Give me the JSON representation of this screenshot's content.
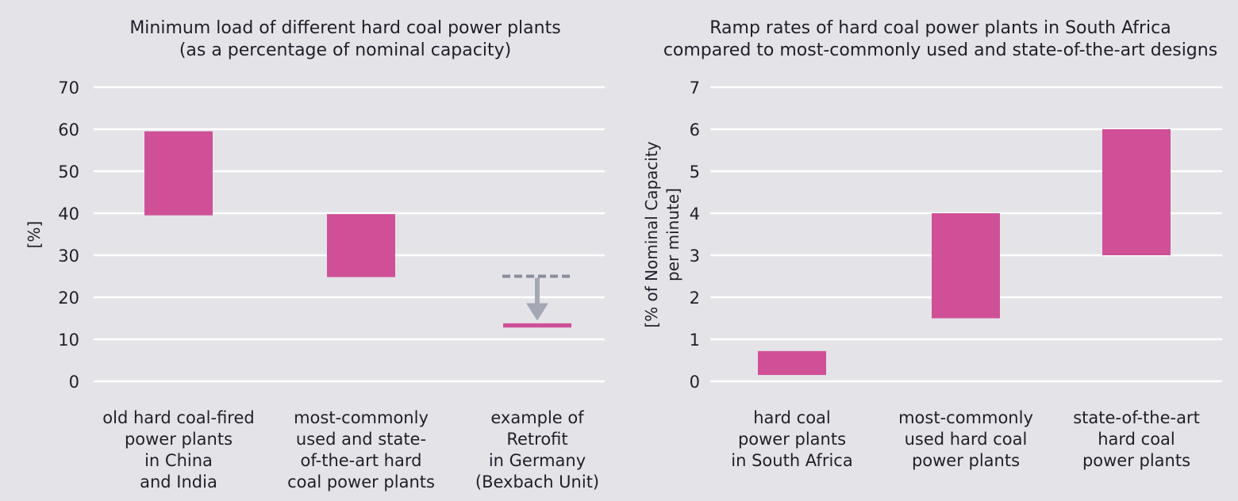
{
  "chart_data": [
    {
      "type": "bar",
      "subtype": "floating-range",
      "title_lines": [
        "Minimum load of different hard coal power plants",
        "(as a percentage of nominal capacity)"
      ],
      "ylabel": "[%]",
      "ylim": [
        0,
        70
      ],
      "yticks": [
        0,
        10,
        20,
        30,
        40,
        50,
        60,
        70
      ],
      "grid": true,
      "categories": [
        [
          "old hard coal-fired",
          "power plants",
          "in China",
          "and India"
        ],
        [
          "most-commonly",
          "used and state-",
          "of-the-art hard",
          "coal power plants"
        ],
        [
          "example of",
          "Retrofit",
          "in Germany",
          "(Bexbach Unit)"
        ]
      ],
      "ranges": [
        [
          39.5,
          59.5
        ],
        [
          24.8,
          39.8
        ],
        [
          12.8,
          13.8
        ]
      ],
      "annotation": {
        "category_index": 2,
        "type": "dashed-line-with-down-arrow",
        "from": 25,
        "to": 13.3
      },
      "bar_color": "#cf5097",
      "arrow_color": "#a4a8b4"
    },
    {
      "type": "bar",
      "subtype": "floating-range",
      "title_lines": [
        "Ramp rates of hard coal power plants in South Africa",
        "compared to most-commonly used and state-of-the-art designs"
      ],
      "ylabel_lines": [
        "[% of Nominal Capacity",
        "per minute]"
      ],
      "ylim": [
        0,
        7
      ],
      "yticks": [
        0,
        1,
        2,
        3,
        4,
        5,
        6,
        7
      ],
      "grid": true,
      "categories": [
        [
          "hard coal",
          "power plants",
          "in South Africa"
        ],
        [
          "most-commonly",
          "used hard coal",
          "power plants"
        ],
        [
          "state-of-the-art",
          "hard coal",
          "power plants"
        ]
      ],
      "ranges": [
        [
          0.15,
          0.72
        ],
        [
          1.5,
          4.0
        ],
        [
          3.0,
          6.0
        ]
      ],
      "bar_color": "#cf5097"
    }
  ]
}
